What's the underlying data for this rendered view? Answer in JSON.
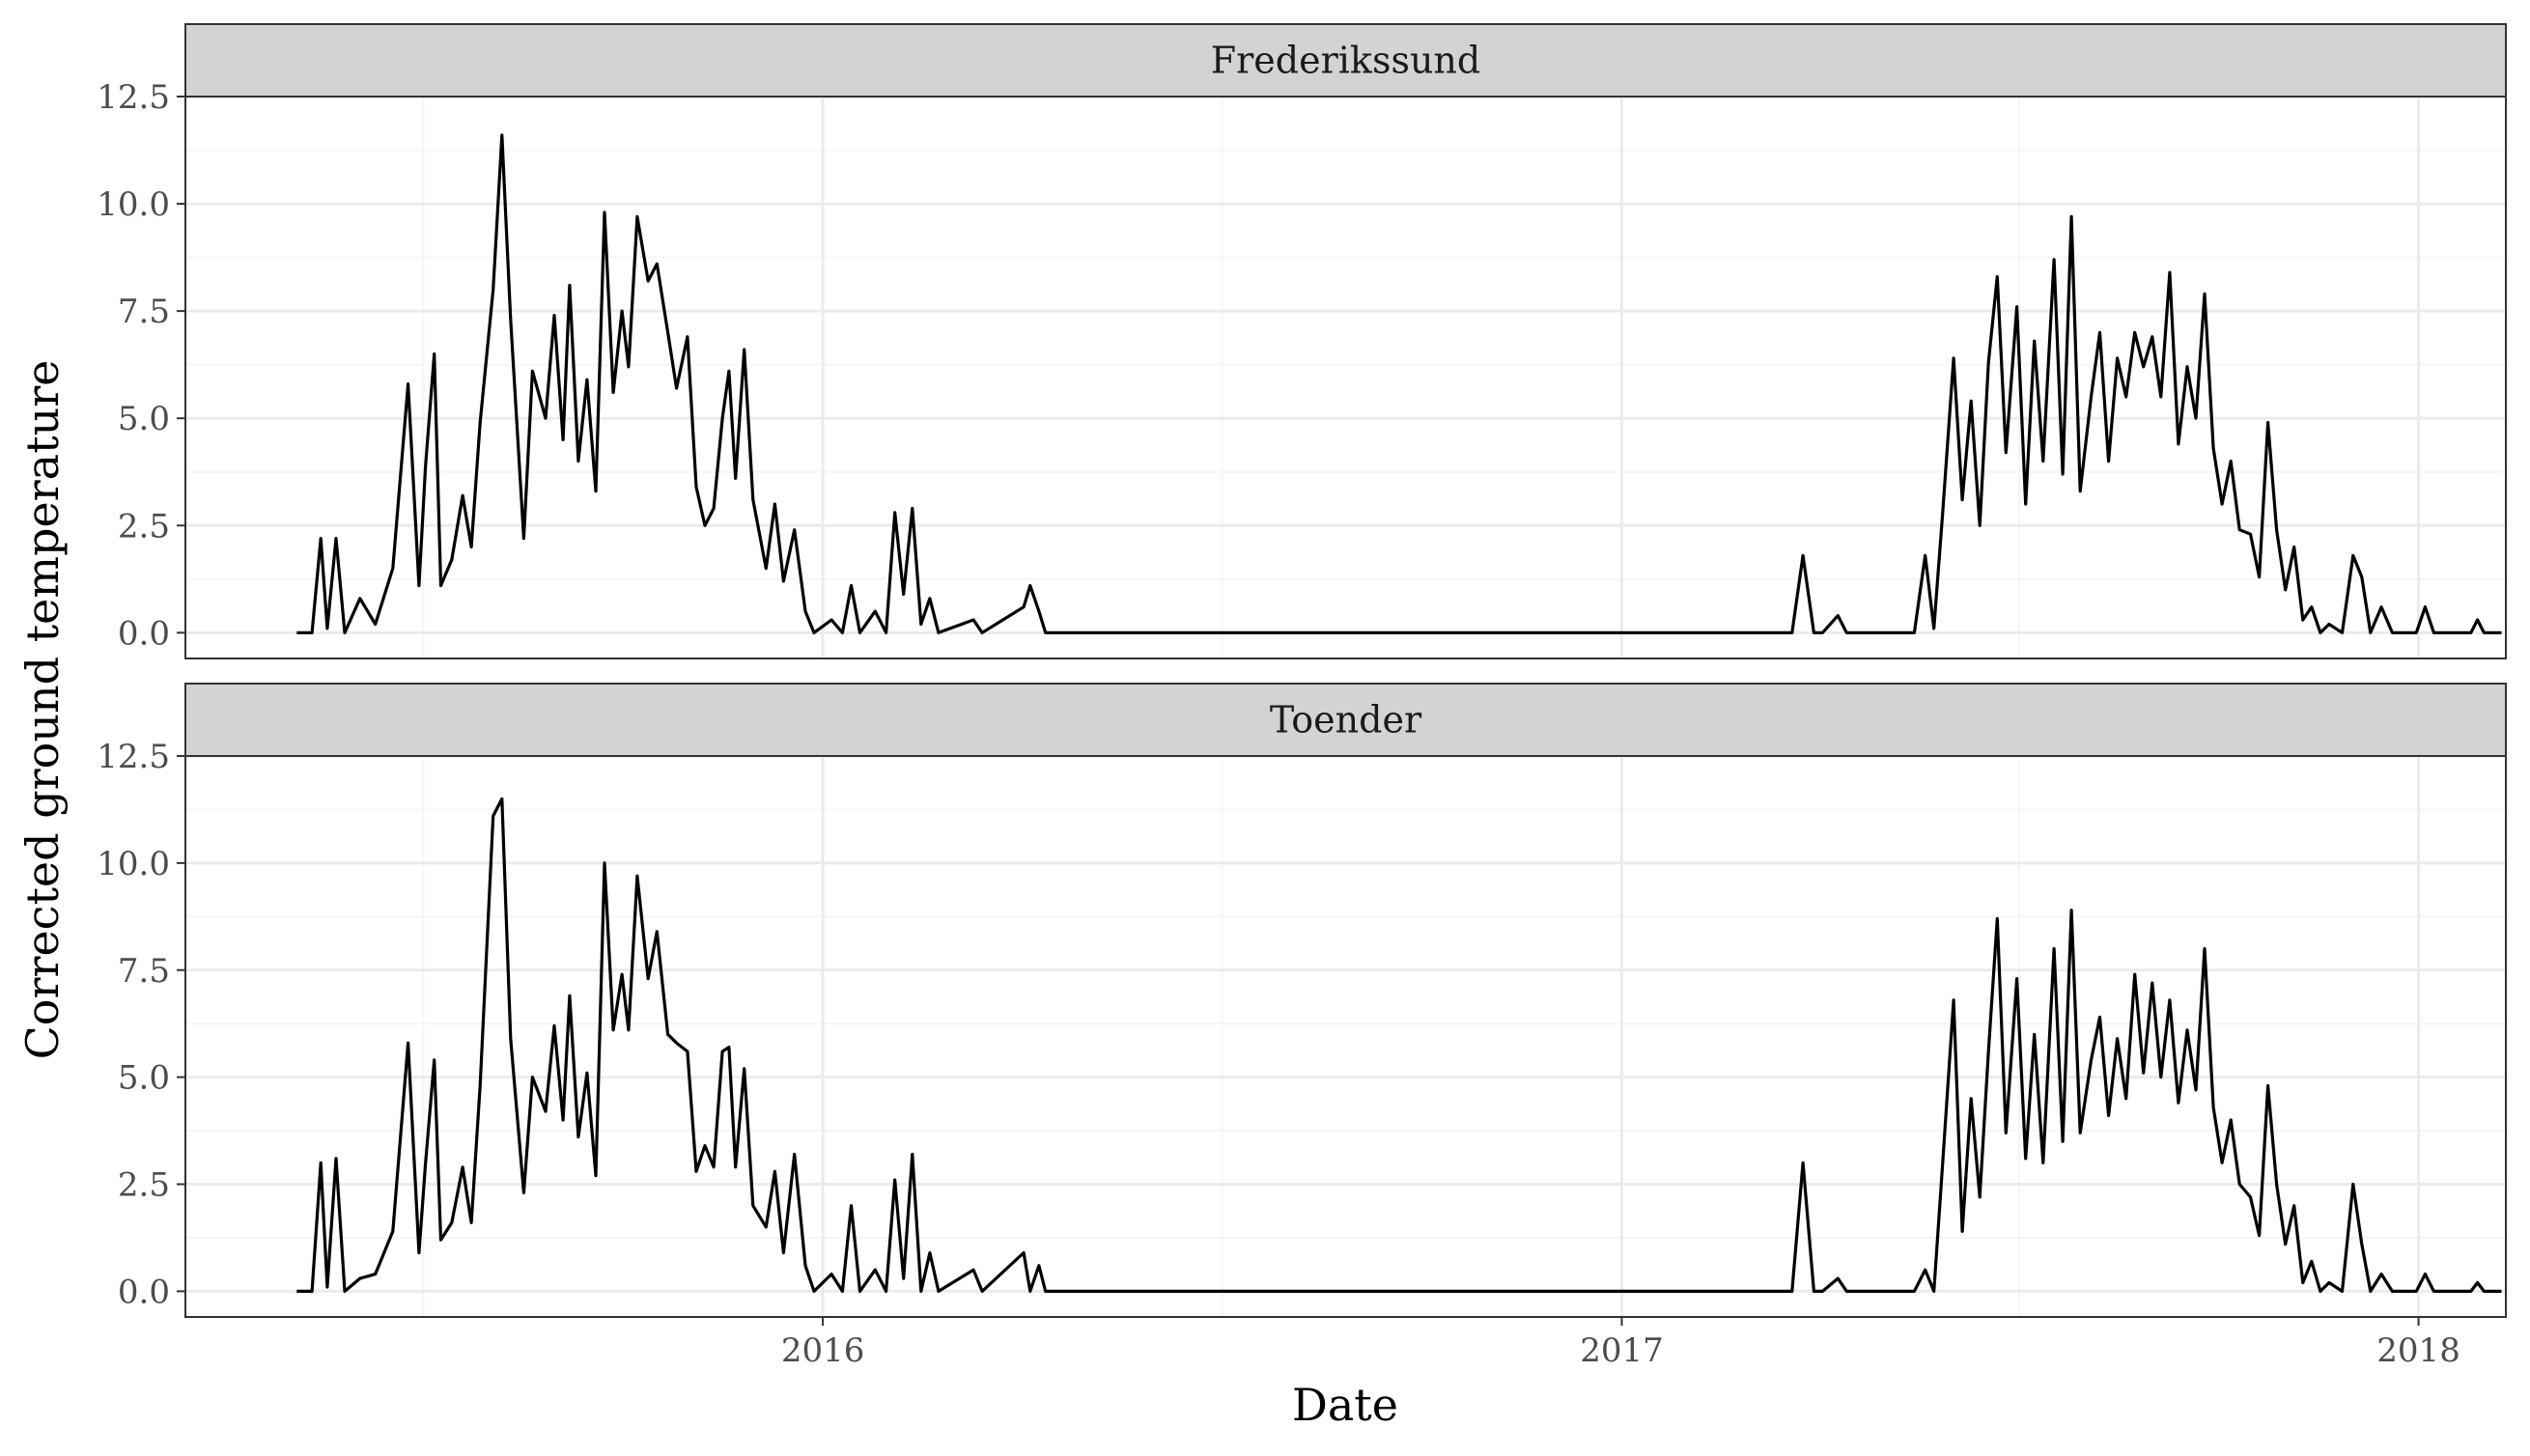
{
  "chart_data": {
    "type": "line",
    "xlabel": "Date",
    "ylabel": "Corrected ground temperature",
    "x_range": [
      "2015-03-15",
      "2018-02-10"
    ],
    "x_ticks": [
      {
        "label": "2016",
        "date": "2016-01-01"
      },
      {
        "label": "2017",
        "date": "2017-01-01"
      },
      {
        "label": "2018",
        "date": "2018-01-01"
      }
    ],
    "ylim": [
      -0.6,
      12.5
    ],
    "y_ticks": [
      0.0,
      2.5,
      5.0,
      7.5,
      10.0,
      12.5
    ],
    "y_tick_labels": [
      "0.0",
      "2.5",
      "5.0",
      "7.5",
      "10.0",
      "12.5"
    ],
    "grid": true,
    "facets": [
      "Frederikssund",
      "Toender"
    ],
    "series": [
      {
        "panel": "Frederikssund",
        "points": [
          [
            "2015-05-05",
            0.0
          ],
          [
            "2015-05-12",
            0.0
          ],
          [
            "2015-05-16",
            2.2
          ],
          [
            "2015-05-19",
            0.1
          ],
          [
            "2015-05-23",
            2.2
          ],
          [
            "2015-05-27",
            0.0
          ],
          [
            "2015-06-03",
            0.8
          ],
          [
            "2015-06-10",
            0.2
          ],
          [
            "2015-06-18",
            1.5
          ],
          [
            "2015-06-25",
            5.8
          ],
          [
            "2015-06-30",
            1.1
          ],
          [
            "2015-07-03",
            3.9
          ],
          [
            "2015-07-07",
            6.5
          ],
          [
            "2015-07-10",
            1.1
          ],
          [
            "2015-07-15",
            1.7
          ],
          [
            "2015-07-20",
            3.2
          ],
          [
            "2015-07-24",
            2.0
          ],
          [
            "2015-07-28",
            4.9
          ],
          [
            "2015-08-03",
            8.0
          ],
          [
            "2015-08-07",
            11.6
          ],
          [
            "2015-08-11",
            7.3
          ],
          [
            "2015-08-17",
            2.2
          ],
          [
            "2015-08-21",
            6.1
          ],
          [
            "2015-08-27",
            5.0
          ],
          [
            "2015-08-31",
            7.4
          ],
          [
            "2015-09-04",
            4.5
          ],
          [
            "2015-09-07",
            8.1
          ],
          [
            "2015-09-11",
            4.0
          ],
          [
            "2015-09-15",
            5.9
          ],
          [
            "2015-09-19",
            3.3
          ],
          [
            "2015-09-23",
            9.8
          ],
          [
            "2015-09-27",
            5.6
          ],
          [
            "2015-10-01",
            7.5
          ],
          [
            "2015-10-04",
            6.2
          ],
          [
            "2015-10-08",
            9.7
          ],
          [
            "2015-10-13",
            8.2
          ],
          [
            "2015-10-17",
            8.6
          ],
          [
            "2015-10-22",
            7.0
          ],
          [
            "2015-10-26",
            5.7
          ],
          [
            "2015-10-31",
            6.9
          ],
          [
            "2015-11-04",
            3.4
          ],
          [
            "2015-11-08",
            2.5
          ],
          [
            "2015-11-12",
            2.9
          ],
          [
            "2015-11-16",
            5.0
          ],
          [
            "2015-11-19",
            6.1
          ],
          [
            "2015-11-22",
            3.6
          ],
          [
            "2015-11-26",
            6.6
          ],
          [
            "2015-11-30",
            3.1
          ],
          [
            "2015-12-06",
            1.5
          ],
          [
            "2015-12-10",
            3.0
          ],
          [
            "2015-12-14",
            1.2
          ],
          [
            "2015-12-19",
            2.4
          ],
          [
            "2015-12-24",
            0.5
          ],
          [
            "2015-12-28",
            0.0
          ],
          [
            "2016-01-05",
            0.3
          ],
          [
            "2016-01-10",
            0.0
          ],
          [
            "2016-01-14",
            1.1
          ],
          [
            "2016-01-18",
            0.0
          ],
          [
            "2016-01-25",
            0.5
          ],
          [
            "2016-01-30",
            0.0
          ],
          [
            "2016-02-03",
            2.8
          ],
          [
            "2016-02-07",
            0.9
          ],
          [
            "2016-02-11",
            2.9
          ],
          [
            "2016-02-15",
            0.2
          ],
          [
            "2016-02-19",
            0.8
          ],
          [
            "2016-02-23",
            0.0
          ],
          [
            "2016-03-10",
            0.3
          ],
          [
            "2016-03-14",
            0.0
          ],
          [
            "2016-04-02",
            0.6
          ],
          [
            "2016-04-05",
            1.1
          ],
          [
            "2016-04-09",
            0.5
          ],
          [
            "2016-04-12",
            0.0
          ],
          [
            "2016-05-15",
            0.0
          ],
          [
            "2017-03-20",
            0.0
          ],
          [
            "2017-03-25",
            1.8
          ],
          [
            "2017-03-30",
            0.0
          ],
          [
            "2017-04-03",
            0.0
          ],
          [
            "2017-04-10",
            0.4
          ],
          [
            "2017-04-14",
            0.0
          ],
          [
            "2017-05-15",
            0.0
          ],
          [
            "2017-05-20",
            1.8
          ],
          [
            "2017-05-24",
            0.1
          ],
          [
            "2017-05-28",
            2.8
          ],
          [
            "2017-06-02",
            6.4
          ],
          [
            "2017-06-06",
            3.1
          ],
          [
            "2017-06-10",
            5.4
          ],
          [
            "2017-06-14",
            2.5
          ],
          [
            "2017-06-18",
            6.3
          ],
          [
            "2017-06-22",
            8.3
          ],
          [
            "2017-06-26",
            4.2
          ],
          [
            "2017-07-01",
            7.6
          ],
          [
            "2017-07-05",
            3.0
          ],
          [
            "2017-07-09",
            6.8
          ],
          [
            "2017-07-13",
            4.0
          ],
          [
            "2017-07-18",
            8.7
          ],
          [
            "2017-07-22",
            3.7
          ],
          [
            "2017-07-26",
            9.7
          ],
          [
            "2017-07-30",
            3.3
          ],
          [
            "2017-08-04",
            5.5
          ],
          [
            "2017-08-08",
            7.0
          ],
          [
            "2017-08-12",
            4.0
          ],
          [
            "2017-08-16",
            6.4
          ],
          [
            "2017-08-20",
            5.5
          ],
          [
            "2017-08-24",
            7.0
          ],
          [
            "2017-08-28",
            6.2
          ],
          [
            "2017-09-01",
            6.9
          ],
          [
            "2017-09-05",
            5.5
          ],
          [
            "2017-09-09",
            8.4
          ],
          [
            "2017-09-13",
            4.4
          ],
          [
            "2017-09-17",
            6.2
          ],
          [
            "2017-09-21",
            5.0
          ],
          [
            "2017-09-25",
            7.9
          ],
          [
            "2017-09-29",
            4.3
          ],
          [
            "2017-10-03",
            3.0
          ],
          [
            "2017-10-07",
            4.0
          ],
          [
            "2017-10-11",
            2.4
          ],
          [
            "2017-10-16",
            2.3
          ],
          [
            "2017-10-20",
            1.3
          ],
          [
            "2017-10-24",
            4.9
          ],
          [
            "2017-10-28",
            2.4
          ],
          [
            "2017-11-01",
            1.0
          ],
          [
            "2017-11-05",
            2.0
          ],
          [
            "2017-11-09",
            0.3
          ],
          [
            "2017-11-13",
            0.6
          ],
          [
            "2017-11-17",
            0.0
          ],
          [
            "2017-11-21",
            0.2
          ],
          [
            "2017-11-27",
            0.0
          ],
          [
            "2017-12-02",
            1.8
          ],
          [
            "2017-12-06",
            1.3
          ],
          [
            "2017-12-10",
            0.0
          ],
          [
            "2017-12-15",
            0.6
          ],
          [
            "2017-12-20",
            0.0
          ],
          [
            "2017-12-31",
            0.0
          ],
          [
            "2018-01-04",
            0.6
          ],
          [
            "2018-01-08",
            0.0
          ],
          [
            "2018-01-25",
            0.0
          ],
          [
            "2018-01-28",
            0.3
          ],
          [
            "2018-01-31",
            0.0
          ],
          [
            "2018-02-08",
            0.0
          ]
        ]
      },
      {
        "panel": "Toender",
        "points": [
          [
            "2015-05-05",
            0.0
          ],
          [
            "2015-05-12",
            0.0
          ],
          [
            "2015-05-16",
            3.0
          ],
          [
            "2015-05-19",
            0.1
          ],
          [
            "2015-05-23",
            3.1
          ],
          [
            "2015-05-27",
            0.0
          ],
          [
            "2015-06-03",
            0.3
          ],
          [
            "2015-06-10",
            0.4
          ],
          [
            "2015-06-18",
            1.4
          ],
          [
            "2015-06-25",
            5.8
          ],
          [
            "2015-06-30",
            0.9
          ],
          [
            "2015-07-03",
            3.0
          ],
          [
            "2015-07-07",
            5.4
          ],
          [
            "2015-07-10",
            1.2
          ],
          [
            "2015-07-15",
            1.6
          ],
          [
            "2015-07-20",
            2.9
          ],
          [
            "2015-07-24",
            1.6
          ],
          [
            "2015-07-28",
            4.8
          ],
          [
            "2015-08-03",
            11.1
          ],
          [
            "2015-08-07",
            11.5
          ],
          [
            "2015-08-11",
            5.9
          ],
          [
            "2015-08-17",
            2.3
          ],
          [
            "2015-08-21",
            5.0
          ],
          [
            "2015-08-27",
            4.2
          ],
          [
            "2015-08-31",
            6.2
          ],
          [
            "2015-09-04",
            4.0
          ],
          [
            "2015-09-07",
            6.9
          ],
          [
            "2015-09-11",
            3.6
          ],
          [
            "2015-09-15",
            5.1
          ],
          [
            "2015-09-19",
            2.7
          ],
          [
            "2015-09-23",
            10.0
          ],
          [
            "2015-09-27",
            6.1
          ],
          [
            "2015-10-01",
            7.4
          ],
          [
            "2015-10-04",
            6.1
          ],
          [
            "2015-10-08",
            9.7
          ],
          [
            "2015-10-13",
            7.3
          ],
          [
            "2015-10-17",
            8.4
          ],
          [
            "2015-10-22",
            6.0
          ],
          [
            "2015-10-26",
            5.8
          ],
          [
            "2015-10-31",
            5.6
          ],
          [
            "2015-11-04",
            2.8
          ],
          [
            "2015-11-08",
            3.4
          ],
          [
            "2015-11-12",
            2.9
          ],
          [
            "2015-11-16",
            5.6
          ],
          [
            "2015-11-19",
            5.7
          ],
          [
            "2015-11-22",
            2.9
          ],
          [
            "2015-11-26",
            5.2
          ],
          [
            "2015-11-30",
            2.0
          ],
          [
            "2015-12-06",
            1.5
          ],
          [
            "2015-12-10",
            2.8
          ],
          [
            "2015-12-14",
            0.9
          ],
          [
            "2015-12-19",
            3.2
          ],
          [
            "2015-12-24",
            0.6
          ],
          [
            "2015-12-28",
            0.0
          ],
          [
            "2016-01-05",
            0.4
          ],
          [
            "2016-01-10",
            0.0
          ],
          [
            "2016-01-14",
            2.0
          ],
          [
            "2016-01-18",
            0.0
          ],
          [
            "2016-01-25",
            0.5
          ],
          [
            "2016-01-30",
            0.0
          ],
          [
            "2016-02-03",
            2.6
          ],
          [
            "2016-02-07",
            0.3
          ],
          [
            "2016-02-11",
            3.2
          ],
          [
            "2016-02-15",
            0.0
          ],
          [
            "2016-02-19",
            0.9
          ],
          [
            "2016-02-23",
            0.0
          ],
          [
            "2016-03-10",
            0.5
          ],
          [
            "2016-03-14",
            0.0
          ],
          [
            "2016-04-02",
            0.9
          ],
          [
            "2016-04-05",
            0.0
          ],
          [
            "2016-04-09",
            0.6
          ],
          [
            "2016-04-12",
            0.0
          ],
          [
            "2016-05-15",
            0.0
          ],
          [
            "2017-03-20",
            0.0
          ],
          [
            "2017-03-25",
            3.0
          ],
          [
            "2017-03-30",
            0.0
          ],
          [
            "2017-04-03",
            0.0
          ],
          [
            "2017-04-10",
            0.3
          ],
          [
            "2017-04-14",
            0.0
          ],
          [
            "2017-05-15",
            0.0
          ],
          [
            "2017-05-20",
            0.5
          ],
          [
            "2017-05-24",
            0.0
          ],
          [
            "2017-05-28",
            3.0
          ],
          [
            "2017-06-02",
            6.8
          ],
          [
            "2017-06-06",
            1.4
          ],
          [
            "2017-06-10",
            4.5
          ],
          [
            "2017-06-14",
            2.2
          ],
          [
            "2017-06-18",
            5.6
          ],
          [
            "2017-06-22",
            8.7
          ],
          [
            "2017-06-26",
            3.7
          ],
          [
            "2017-07-01",
            7.3
          ],
          [
            "2017-07-05",
            3.1
          ],
          [
            "2017-07-09",
            6.0
          ],
          [
            "2017-07-13",
            3.0
          ],
          [
            "2017-07-18",
            8.0
          ],
          [
            "2017-07-22",
            3.5
          ],
          [
            "2017-07-26",
            8.9
          ],
          [
            "2017-07-30",
            3.7
          ],
          [
            "2017-08-04",
            5.4
          ],
          [
            "2017-08-08",
            6.4
          ],
          [
            "2017-08-12",
            4.1
          ],
          [
            "2017-08-16",
            5.9
          ],
          [
            "2017-08-20",
            4.5
          ],
          [
            "2017-08-24",
            7.4
          ],
          [
            "2017-08-28",
            5.1
          ],
          [
            "2017-09-01",
            7.2
          ],
          [
            "2017-09-05",
            5.0
          ],
          [
            "2017-09-09",
            6.8
          ],
          [
            "2017-09-13",
            4.4
          ],
          [
            "2017-09-17",
            6.1
          ],
          [
            "2017-09-21",
            4.7
          ],
          [
            "2017-09-25",
            8.0
          ],
          [
            "2017-09-29",
            4.3
          ],
          [
            "2017-10-03",
            3.0
          ],
          [
            "2017-10-07",
            4.0
          ],
          [
            "2017-10-11",
            2.5
          ],
          [
            "2017-10-16",
            2.2
          ],
          [
            "2017-10-20",
            1.3
          ],
          [
            "2017-10-24",
            4.8
          ],
          [
            "2017-10-28",
            2.5
          ],
          [
            "2017-11-01",
            1.1
          ],
          [
            "2017-11-05",
            2.0
          ],
          [
            "2017-11-09",
            0.2
          ],
          [
            "2017-11-13",
            0.7
          ],
          [
            "2017-11-17",
            0.0
          ],
          [
            "2017-11-21",
            0.2
          ],
          [
            "2017-11-27",
            0.0
          ],
          [
            "2017-12-02",
            2.5
          ],
          [
            "2017-12-06",
            1.1
          ],
          [
            "2017-12-10",
            0.0
          ],
          [
            "2017-12-15",
            0.4
          ],
          [
            "2017-12-20",
            0.0
          ],
          [
            "2017-12-31",
            0.0
          ],
          [
            "2018-01-04",
            0.4
          ],
          [
            "2018-01-08",
            0.0
          ],
          [
            "2018-01-25",
            0.0
          ],
          [
            "2018-01-28",
            0.2
          ],
          [
            "2018-01-31",
            0.0
          ],
          [
            "2018-02-08",
            0.0
          ]
        ]
      }
    ]
  },
  "colors": {
    "line": "#000000",
    "strip_fill": "#d3d3d3",
    "grid_major": "#ebebeb",
    "grid_minor": "#f5f5f5",
    "panel_border": "#333333",
    "tick_text": "#4d4d4d"
  }
}
